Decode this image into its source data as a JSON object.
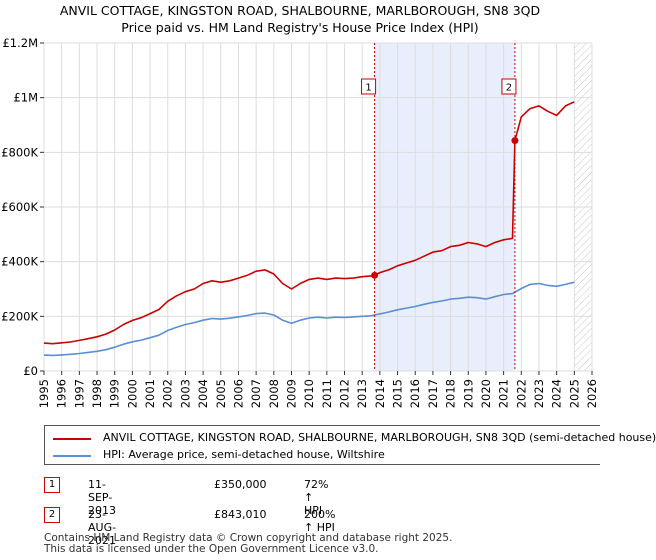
{
  "title_line1": "ANVIL COTTAGE, KINGSTON ROAD, SHALBOURNE, MARLBOROUGH, SN8 3QD",
  "title_line2": "Price paid vs. HM Land Registry's House Price Index (HPI)",
  "colors": {
    "property": "#cc0000",
    "hpi": "#5b8fd4",
    "shade": "#e8eefb",
    "marker": "#cc0000"
  },
  "chart_data": {
    "type": "line",
    "title": "Price paid vs. HM Land Registry's House Price Index (HPI)",
    "xlabel": "",
    "ylabel": "",
    "xlim": [
      1995,
      2026
    ],
    "ylim": [
      0,
      1200000
    ],
    "y_ticks": [
      {
        "value": 0,
        "label": "£0"
      },
      {
        "value": 200000,
        "label": "£200K"
      },
      {
        "value": 400000,
        "label": "£400K"
      },
      {
        "value": 600000,
        "label": "£600K"
      },
      {
        "value": 800000,
        "label": "£800K"
      },
      {
        "value": 1000000,
        "label": "£1M"
      },
      {
        "value": 1200000,
        "label": "£1.2M"
      }
    ],
    "x_ticks": [
      "1995",
      "1996",
      "1997",
      "1998",
      "1999",
      "2000",
      "2001",
      "2002",
      "2003",
      "2004",
      "2005",
      "2006",
      "2007",
      "2008",
      "2009",
      "2010",
      "2011",
      "2012",
      "2013",
      "2014",
      "2015",
      "2016",
      "2017",
      "2018",
      "2019",
      "2020",
      "2021",
      "2022",
      "2023",
      "2024",
      "2025",
      "2026"
    ],
    "grid": true,
    "shaded_region": [
      2013.7,
      2021.64
    ],
    "hatched_region": [
      2025.0,
      2026.0
    ],
    "series": [
      {
        "name": "ANVIL COTTAGE, KINGSTON ROAD, SHALBOURNE, MARLBOROUGH, SN8 3QD (semi-detached house)",
        "color": "#cc0000",
        "x": [
          1995,
          1995.5,
          1996,
          1996.5,
          1997,
          1997.5,
          1998,
          1998.5,
          1999,
          1999.5,
          2000,
          2000.5,
          2001,
          2001.5,
          2002,
          2002.5,
          2003,
          2003.5,
          2004,
          2004.5,
          2005,
          2005.5,
          2006,
          2006.5,
          2007,
          2007.5,
          2008,
          2008.5,
          2009,
          2009.5,
          2010,
          2010.5,
          2011,
          2011.5,
          2012,
          2012.5,
          2013,
          2013.5,
          2013.7,
          2014,
          2014.5,
          2015,
          2015.5,
          2016,
          2016.5,
          2017,
          2017.5,
          2018,
          2018.5,
          2019,
          2019.5,
          2020,
          2020.5,
          2021,
          2021.5,
          2021.64,
          2022,
          2022.5,
          2023,
          2023.5,
          2024,
          2024.5,
          2025
        ],
        "y": [
          102000,
          100000,
          103000,
          106000,
          112000,
          118000,
          125000,
          135000,
          150000,
          170000,
          185000,
          195000,
          210000,
          225000,
          255000,
          275000,
          290000,
          300000,
          320000,
          330000,
          325000,
          330000,
          340000,
          350000,
          365000,
          370000,
          355000,
          320000,
          300000,
          320000,
          335000,
          340000,
          335000,
          340000,
          338000,
          340000,
          345000,
          348000,
          350000,
          360000,
          370000,
          385000,
          395000,
          405000,
          420000,
          435000,
          440000,
          455000,
          460000,
          470000,
          465000,
          455000,
          470000,
          480000,
          485000,
          843010,
          930000,
          960000,
          970000,
          950000,
          935000,
          970000,
          985000
        ]
      },
      {
        "name": "HPI: Average price, semi-detached house, Wiltshire",
        "color": "#5b8fd4",
        "x": [
          1995,
          1995.5,
          1996,
          1996.5,
          1997,
          1997.5,
          1998,
          1998.5,
          1999,
          1999.5,
          2000,
          2000.5,
          2001,
          2001.5,
          2002,
          2002.5,
          2003,
          2003.5,
          2004,
          2004.5,
          2005,
          2005.5,
          2006,
          2006.5,
          2007,
          2007.5,
          2008,
          2008.5,
          2009,
          2009.5,
          2010,
          2010.5,
          2011,
          2011.5,
          2012,
          2012.5,
          2013,
          2013.5,
          2014,
          2014.5,
          2015,
          2015.5,
          2016,
          2016.5,
          2017,
          2017.5,
          2018,
          2018.5,
          2019,
          2019.5,
          2020,
          2020.5,
          2021,
          2021.5,
          2022,
          2022.5,
          2023,
          2023.5,
          2024,
          2024.5,
          2025
        ],
        "y": [
          58000,
          57000,
          59000,
          61000,
          64000,
          68000,
          72000,
          78000,
          87000,
          98000,
          107000,
          113000,
          122000,
          131000,
          148000,
          160000,
          170000,
          177000,
          186000,
          192000,
          190000,
          193000,
          198000,
          203000,
          210000,
          212000,
          205000,
          186000,
          175000,
          186000,
          194000,
          197000,
          194000,
          197000,
          196000,
          198000,
          200000,
          202000,
          209000,
          216000,
          224000,
          230000,
          236000,
          244000,
          251000,
          256000,
          263000,
          266000,
          270000,
          268000,
          263000,
          272000,
          280000,
          283000,
          302000,
          317000,
          320000,
          313000,
          310000,
          317000,
          325000
        ]
      }
    ],
    "annotations": [
      {
        "label": "1",
        "x": 2013.7,
        "y": 350000
      },
      {
        "label": "2",
        "x": 2021.64,
        "y": 843010
      }
    ]
  },
  "legend": {
    "property_label": "ANVIL COTTAGE, KINGSTON ROAD, SHALBOURNE, MARLBOROUGH, SN8 3QD (semi-detached house)",
    "hpi_label": "HPI: Average price, semi-detached house, Wiltshire"
  },
  "transactions": [
    {
      "num": "1",
      "date": "11-SEP-2013",
      "price": "£350,000",
      "hpi": "72% ↑ HPI"
    },
    {
      "num": "2",
      "date": "23-AUG-2021",
      "price": "£843,010",
      "hpi": "200% ↑ HPI"
    }
  ],
  "footer_line1": "Contains HM Land Registry data © Crown copyright and database right 2025.",
  "footer_line2": "This data is licensed under the Open Government Licence v3.0."
}
